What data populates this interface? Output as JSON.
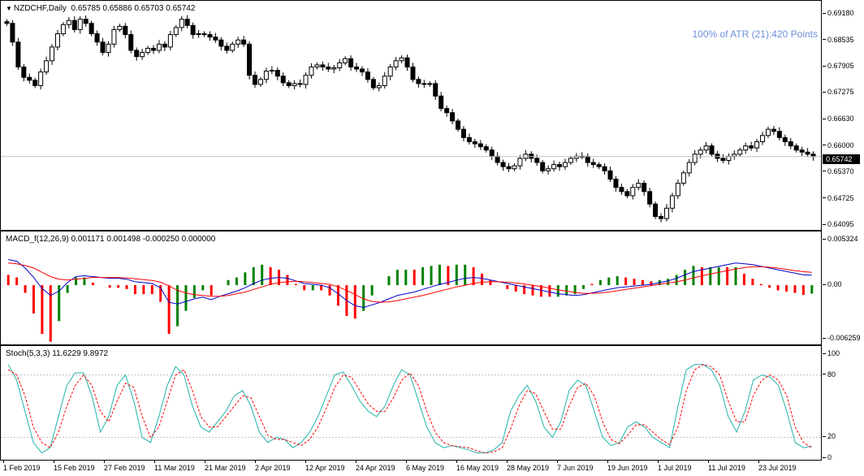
{
  "price_pane": {
    "symbol_label": "NZDCHF,Daily",
    "ohlc_label": "0.65785 0.65886 0.65703 0.65742",
    "atr_label": "100% of ATR (21):420 Points",
    "current_price": "0.65742",
    "yticks": [
      "0.69180",
      "0.68535",
      "0.67905",
      "0.67275",
      "0.66630",
      "0.66000",
      "0.65370",
      "0.64725",
      "0.64095"
    ]
  },
  "macd_pane": {
    "label": "MACD_f(12,26,9) 0.001171 0.001498 -0.000250 0.000000",
    "yticks": [
      "0.005324",
      "0.00",
      "-0.006259"
    ]
  },
  "stoch_pane": {
    "label": "Stoch(5,3,3) 11.6229 9.8972",
    "yticks": [
      "100",
      "80",
      "20",
      "0"
    ]
  },
  "xaxis": {
    "labels": [
      "1 Feb 2019",
      "15 Feb 2019",
      "27 Feb 2019",
      "11 Mar 2019",
      "21 Mar 2019",
      "2 Apr 2019",
      "12 Apr 2019",
      "24 Apr 2019",
      "6 May 2019",
      "16 May 2019",
      "28 May 2019",
      "7 Jun 2019",
      "19 Jun 2019",
      "1 Jul 2019",
      "11 Jul 2019",
      "23 Jul 2019"
    ]
  },
  "chart_data": [
    {
      "type": "candlestick",
      "title": "NZDCHF,Daily",
      "ylim": [
        0.64095,
        0.6918
      ],
      "grid": false,
      "close": [
        0.6895,
        0.685,
        0.679,
        0.6765,
        0.6758,
        0.6745,
        0.6778,
        0.6805,
        0.6838,
        0.687,
        0.6892,
        0.6902,
        0.688,
        0.6905,
        0.6895,
        0.687,
        0.685,
        0.6825,
        0.6845,
        0.688,
        0.6888,
        0.6868,
        0.683,
        0.6815,
        0.6825,
        0.6835,
        0.683,
        0.6845,
        0.6838,
        0.6868,
        0.6885,
        0.6905,
        0.689,
        0.6868,
        0.687,
        0.6868,
        0.6862,
        0.6855,
        0.684,
        0.683,
        0.6845,
        0.6855,
        0.6845,
        0.677,
        0.6748,
        0.676,
        0.678,
        0.6782,
        0.6768,
        0.6752,
        0.6745,
        0.675,
        0.6748,
        0.677,
        0.679,
        0.6795,
        0.679,
        0.6785,
        0.6788,
        0.68,
        0.681,
        0.679,
        0.6785,
        0.6778,
        0.676,
        0.674,
        0.6745,
        0.6768,
        0.679,
        0.6805,
        0.6812,
        0.679,
        0.676,
        0.675,
        0.6748,
        0.675,
        0.672,
        0.669,
        0.668,
        0.666,
        0.664,
        0.662,
        0.661,
        0.6605,
        0.6598,
        0.659,
        0.6575,
        0.656,
        0.655,
        0.6545,
        0.6552,
        0.657,
        0.658,
        0.657,
        0.656,
        0.654,
        0.6545,
        0.6555,
        0.655,
        0.656,
        0.657,
        0.6575,
        0.6575,
        0.656,
        0.6555,
        0.655,
        0.654,
        0.652,
        0.65,
        0.649,
        0.648,
        0.65,
        0.651,
        0.649,
        0.646,
        0.643,
        0.6425,
        0.645,
        0.648,
        0.651,
        0.6535,
        0.656,
        0.658,
        0.659,
        0.66,
        0.658,
        0.657,
        0.6565,
        0.6575,
        0.658,
        0.659,
        0.66,
        0.6595,
        0.661,
        0.6625,
        0.664,
        0.6635,
        0.662,
        0.661,
        0.66,
        0.659,
        0.6585,
        0.658,
        0.65742
      ]
    },
    {
      "type": "bar",
      "title": "MACD_f(12,26,9)",
      "ylim": [
        -0.006259,
        0.005324
      ],
      "series": [
        {
          "name": "MACD",
          "values": [
            0.003,
            0.0028,
            0.002,
            0.0009,
            -0.0004,
            -0.0012,
            -0.0007,
            0.0003,
            0.001,
            0.0011,
            0.001,
            0.0009,
            0.0008,
            0.0008,
            0.0007,
            0.0004,
            0.0003,
            0.0002,
            -0.0003,
            -0.002,
            -0.0022,
            -0.0019,
            -0.0016,
            -0.0014,
            -0.0017,
            -0.0013,
            -0.001,
            -0.0007,
            -0.0003,
            0.0002,
            0.0006,
            0.0008,
            0.0009,
            0.0008,
            0.0005,
            0.0002,
            0.0001,
            0.0,
            -0.0003,
            -0.001,
            -0.0018,
            -0.0024,
            -0.0026,
            -0.0023,
            -0.002,
            -0.0016,
            -0.0012,
            -0.001,
            -0.0008,
            -0.0005,
            -0.0002,
            0.0001,
            0.0003,
            0.0006,
            0.0008,
            0.0009,
            0.0008,
            0.0006,
            0.0004,
            0.0002,
            0.0,
            -0.0002,
            -0.0004,
            -0.0006,
            -0.0008,
            -0.001,
            -0.0011,
            -0.0012,
            -0.0011,
            -0.0009,
            -0.0007,
            -0.0005,
            -0.0003,
            -0.0002,
            -0.0001,
            0.0,
            0.0001,
            0.0003,
            0.0005,
            0.0008,
            0.0012,
            0.0016,
            0.0018,
            0.002,
            0.0022,
            0.0024,
            0.0026,
            0.0025,
            0.0024,
            0.0022,
            0.002,
            0.0018,
            0.0016,
            0.0014,
            0.0012,
            0.00117
          ]
        },
        {
          "name": "Signal",
          "values": [
            0.0026,
            0.0025,
            0.0023,
            0.002,
            0.0015,
            0.001,
            0.0007,
            0.0006,
            0.0007,
            0.0008,
            0.0009,
            0.0009,
            0.0009,
            0.0009,
            0.00085,
            0.00075,
            0.00065,
            0.00055,
            0.00035,
            -0.0001,
            -0.0006,
            -0.0009,
            -0.0011,
            -0.0012,
            -0.0013,
            -0.0013,
            -0.0012,
            -0.001,
            -0.0008,
            -0.0005,
            -0.0002,
            0.0001,
            0.0003,
            0.0004,
            0.00045,
            0.0004,
            0.0003,
            0.0002,
            0.0001,
            -0.0002,
            -0.0006,
            -0.0011,
            -0.0016,
            -0.0019,
            -0.002,
            -0.00195,
            -0.0018,
            -0.0016,
            -0.0014,
            -0.0012,
            -0.00095,
            -0.0007,
            -0.00045,
            -0.0002,
            0.0,
            0.0002,
            0.00035,
            0.0004,
            0.0004,
            0.00035,
            0.00025,
            0.00015,
            0.0,
            -0.00015,
            -0.00035,
            -0.00055,
            -0.0007,
            -0.00085,
            -0.00095,
            -0.00095,
            -0.0009,
            -0.0008,
            -0.00065,
            -0.0005,
            -0.00035,
            -0.0002,
            -5e-05,
            0.0001,
            0.00025,
            0.0004,
            0.0006,
            0.00085,
            0.0011,
            0.0013,
            0.0015,
            0.0017,
            0.0019,
            0.00205,
            0.00215,
            0.00215,
            0.0021,
            0.002,
            0.00185,
            0.0017,
            0.00158,
            0.0015
          ]
        }
      ]
    },
    {
      "type": "line",
      "title": "Stoch(5,3,3)",
      "ylim": [
        0,
        100
      ],
      "series": [
        {
          "name": "%K",
          "values": [
            90,
            75,
            45,
            15,
            5,
            10,
            40,
            70,
            82,
            82,
            60,
            25,
            40,
            70,
            80,
            55,
            20,
            15,
            40,
            70,
            88,
            80,
            50,
            30,
            25,
            35,
            45,
            60,
            65,
            50,
            25,
            15,
            20,
            18,
            10,
            15,
            25,
            40,
            60,
            80,
            83,
            70,
            55,
            45,
            40,
            50,
            70,
            85,
            80,
            55,
            30,
            15,
            10,
            12,
            10,
            8,
            5,
            5,
            8,
            15,
            45,
            60,
            70,
            55,
            30,
            20,
            35,
            65,
            75,
            70,
            45,
            20,
            12,
            15,
            30,
            35,
            30,
            20,
            15,
            10,
            50,
            85,
            90,
            90,
            85,
            70,
            40,
            25,
            45,
            75,
            80,
            78,
            70,
            45,
            15,
            10,
            11.6229
          ]
        },
        {
          "name": "%D",
          "values": [
            85,
            80,
            60,
            30,
            15,
            10,
            25,
            50,
            70,
            80,
            70,
            45,
            35,
            55,
            72,
            68,
            40,
            20,
            30,
            55,
            80,
            85,
            65,
            40,
            30,
            30,
            40,
            50,
            60,
            58,
            40,
            22,
            18,
            18,
            15,
            12,
            18,
            30,
            48,
            68,
            80,
            78,
            65,
            52,
            45,
            45,
            58,
            75,
            82,
            70,
            45,
            25,
            15,
            12,
            11,
            10,
            7,
            5,
            6,
            10,
            28,
            50,
            65,
            62,
            45,
            28,
            28,
            50,
            68,
            72,
            60,
            35,
            18,
            14,
            22,
            32,
            32,
            25,
            18,
            13,
            30,
            65,
            85,
            90,
            88,
            80,
            55,
            35,
            35,
            60,
            75,
            80,
            75,
            60,
            30,
            15,
            9.8972
          ]
        }
      ]
    }
  ]
}
